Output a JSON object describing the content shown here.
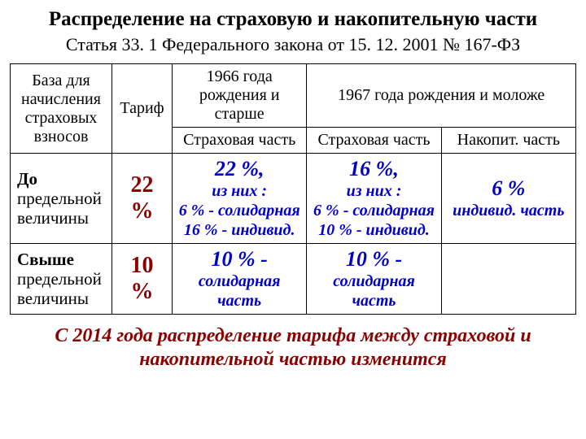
{
  "title": "Распределение на страховую и накопительную части",
  "subtitle": "Статья 33. 1 Федерального закона от 15. 12. 2001 № 167-ФЗ",
  "headers": {
    "base": "База для начисления страховых взносов",
    "tarif": "Тариф",
    "col1966": "1966 года рождения и старше",
    "col1967": "1967 года рождения и моложе",
    "insurance": "Страховая часть",
    "funded": "Накопит. часть"
  },
  "rows": {
    "below": {
      "label_bold": "До",
      "label_rest": "предельной величины",
      "tarif": "22 %",
      "c1966_pct": "22 %,",
      "c1966_sub": "из них :",
      "c1966_l1": "6 % - солидарная",
      "c1966_l2": "16 % - индивид.",
      "c1967_pct": "16 %,",
      "c1967_sub": "из них :",
      "c1967_l1": "6 % - солидарная",
      "c1967_l2": "10 % - индивид.",
      "funded_pct": "6 %",
      "funded_l1": "индивид. часть"
    },
    "above": {
      "label_bold": "Свыше",
      "label_rest": "предельной величины",
      "tarif": "10 %",
      "c1966_pct": "10 % -",
      "c1966_l1": "солидарная часть",
      "c1967_pct": "10 % -",
      "c1967_l1": "солидарная часть"
    }
  },
  "footer": "С 2014 года распределение тарифа между страховой и накопительной частью изменится"
}
